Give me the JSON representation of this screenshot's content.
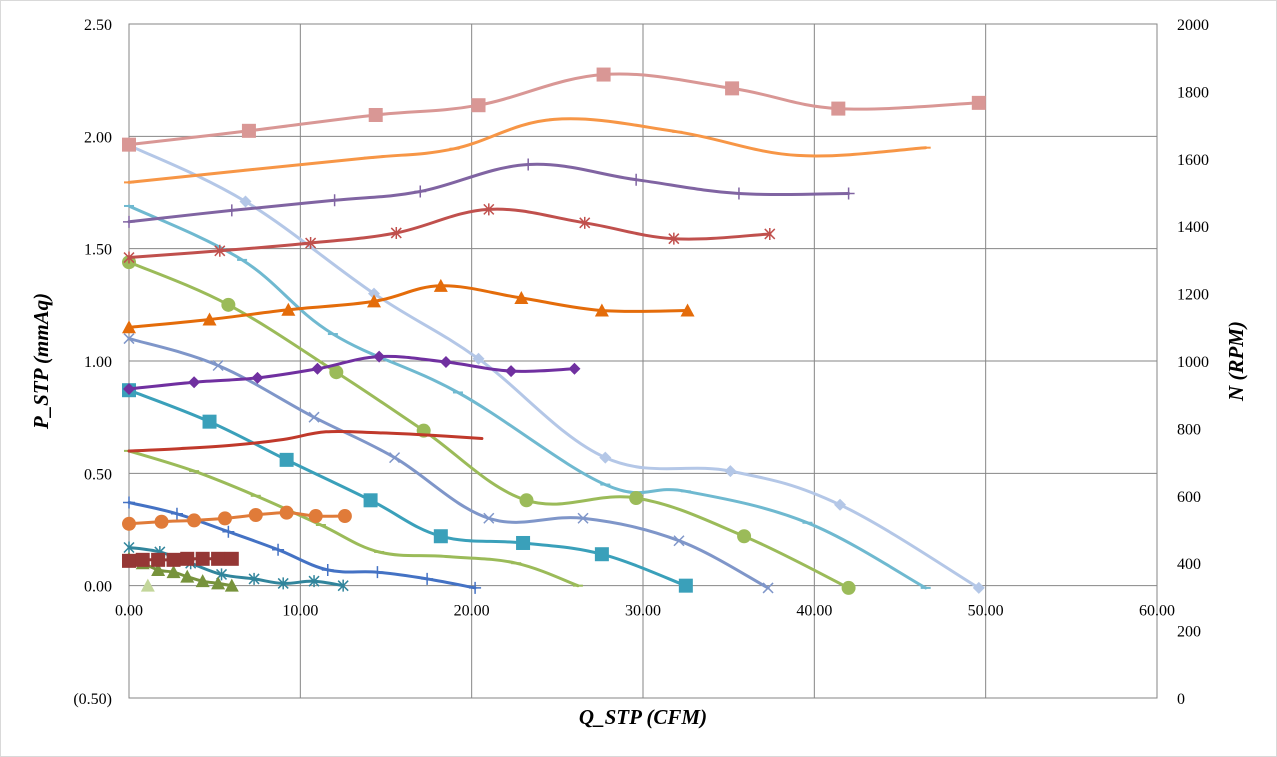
{
  "chart_data": {
    "type": "line",
    "xlabel": "Q_STP (CFM)",
    "ylabel": "P_STP (mmAq)",
    "y2label": "N (RPM)",
    "xlim": [
      0,
      60
    ],
    "ylim": [
      -0.5,
      2.5
    ],
    "y2lim": [
      0,
      2000
    ],
    "x_ticks": [
      "0.00",
      "10.00",
      "20.00",
      "30.00",
      "40.00",
      "50.00",
      "60.00"
    ],
    "y_ticks": [
      {
        "value": 2.5,
        "label": "2.50"
      },
      {
        "value": 2.0,
        "label": "2.00"
      },
      {
        "value": 1.5,
        "label": "1.50"
      },
      {
        "value": 1.0,
        "label": "1.00"
      },
      {
        "value": 0.5,
        "label": "0.50"
      },
      {
        "value": 0.0,
        "label": "0.00"
      },
      {
        "value": -0.5,
        "label": "(0.50)",
        "color": "#ff0000"
      }
    ],
    "y2_ticks": [
      "2000",
      "1800",
      "1600",
      "1400",
      "1200",
      "1000",
      "800",
      "600",
      "400",
      "200",
      "0"
    ],
    "grid": true,
    "legend": "none",
    "series": [
      {
        "axis": "y",
        "color": "#b4c7e7",
        "marker": "diamond",
        "x": [
          0,
          6.8,
          14.3,
          20.4,
          27.8,
          35.1,
          41.5,
          49.6
        ],
        "y": [
          1.96,
          1.71,
          1.3,
          1.01,
          0.57,
          0.51,
          0.36,
          -0.01
        ]
      },
      {
        "axis": "y",
        "color": "#6fb9d0",
        "marker": "dash",
        "x": [
          0,
          6.6,
          11.9,
          19.2,
          27.8,
          32.5,
          39.6,
          46.5
        ],
        "y": [
          1.69,
          1.45,
          1.12,
          0.86,
          0.45,
          0.42,
          0.28,
          -0.01
        ]
      },
      {
        "axis": "y",
        "color": "#9bbb59",
        "marker": "circle",
        "x": [
          0,
          5.8,
          12.1,
          17.2,
          23.2,
          29.6,
          35.9,
          42.0
        ],
        "y": [
          1.44,
          1.25,
          0.95,
          0.69,
          0.38,
          0.39,
          0.22,
          -0.01
        ]
      },
      {
        "axis": "y",
        "color": "#7f96c9",
        "marker": "x",
        "x": [
          0,
          5.2,
          10.8,
          15.5,
          21.0,
          26.5,
          32.1,
          37.3
        ],
        "y": [
          1.1,
          0.98,
          0.75,
          0.57,
          0.3,
          0.3,
          0.2,
          -0.01
        ]
      },
      {
        "axis": "y",
        "color": "#3aa0ba",
        "marker": "square",
        "x": [
          0,
          4.7,
          9.2,
          14.1,
          18.2,
          23.0,
          27.6,
          32.5
        ],
        "y": [
          0.87,
          0.73,
          0.56,
          0.38,
          0.22,
          0.19,
          0.14,
          0.0
        ]
      },
      {
        "axis": "y",
        "color": "#9bbb59",
        "marker": "dash",
        "x": [
          0,
          3.8,
          7.4,
          11.2,
          14.6,
          18.5,
          22.6,
          26.2
        ],
        "y": [
          0.6,
          0.51,
          0.4,
          0.27,
          0.15,
          0.13,
          0.1,
          0.0
        ]
      },
      {
        "axis": "y",
        "color": "#4472c4",
        "marker": "plus",
        "x": [
          0,
          2.8,
          5.8,
          8.7,
          11.6,
          14.5,
          17.4,
          20.2
        ],
        "y": [
          0.37,
          0.32,
          0.24,
          0.16,
          0.07,
          0.06,
          0.03,
          -0.01
        ]
      },
      {
        "axis": "y",
        "color": "#31859c",
        "marker": "asterisk",
        "x": [
          0,
          1.8,
          3.6,
          5.4,
          7.3,
          9.0,
          10.8,
          12.5
        ],
        "y": [
          0.17,
          0.15,
          0.1,
          0.05,
          0.03,
          0.01,
          0.02,
          0.0
        ]
      },
      {
        "axis": "y",
        "color": "#77933c",
        "marker": "triangle",
        "x": [
          0,
          0.8,
          1.7,
          2.6,
          3.4,
          4.3,
          5.2,
          6.0
        ],
        "y": [
          0.12,
          0.1,
          0.07,
          0.06,
          0.04,
          0.02,
          0.01,
          0.0
        ]
      },
      {
        "axis": "y",
        "color": "#c3d69b",
        "marker": "triangle",
        "x": [
          1.1
        ],
        "y": [
          0.0
        ]
      },
      {
        "axis": "y2",
        "color": "#d99795",
        "marker": "square",
        "x": [
          0,
          7.0,
          14.4,
          20.4,
          27.7,
          35.2,
          41.4,
          49.6
        ],
        "y": [
          1642,
          1683,
          1730,
          1759,
          1850,
          1809,
          1749,
          1766
        ]
      },
      {
        "axis": "y2",
        "color": "#f79646",
        "marker": "dash",
        "x": [
          0,
          7.0,
          14.0,
          19.0,
          24.8,
          32.0,
          39.0,
          46.5
        ],
        "y": [
          1530,
          1567,
          1603,
          1630,
          1717,
          1680,
          1610,
          1633
        ]
      },
      {
        "axis": "y2",
        "color": "#8064a2",
        "marker": "plus",
        "x": [
          0,
          6.0,
          12.0,
          17.0,
          23.3,
          29.6,
          35.6,
          42.0
        ],
        "y": [
          1413,
          1447,
          1477,
          1503,
          1583,
          1538,
          1497,
          1497
        ]
      },
      {
        "axis": "y2",
        "color": "#c0504d",
        "marker": "asterisk",
        "x": [
          0,
          5.3,
          10.6,
          15.6,
          21.0,
          26.6,
          31.8,
          37.4
        ],
        "y": [
          1307,
          1327,
          1350,
          1380,
          1450,
          1410,
          1363,
          1377
        ]
      },
      {
        "axis": "y2",
        "color": "#e46c0a",
        "marker": "triangle",
        "x": [
          0,
          4.7,
          9.3,
          14.3,
          18.2,
          22.9,
          27.6,
          32.6
        ],
        "y": [
          1100,
          1123,
          1152,
          1177,
          1223,
          1187,
          1150,
          1150
        ]
      },
      {
        "axis": "y2",
        "color": "#7030a0",
        "marker": "diamond",
        "x": [
          0,
          3.8,
          7.5,
          11.0,
          14.6,
          18.5,
          22.3,
          26.0
        ],
        "y": [
          917,
          937,
          950,
          977,
          1013,
          997,
          970,
          977
        ]
      },
      {
        "axis": "y2",
        "color": "#c0392b",
        "marker": "none",
        "x": [
          0,
          3.0,
          6.0,
          9.0,
          11.5,
          14.5,
          17.5,
          20.6
        ],
        "y": [
          733,
          740,
          750,
          767,
          790,
          787,
          780,
          770
        ]
      },
      {
        "axis": "y2",
        "color": "#e07b39",
        "marker": "circle",
        "x": [
          0,
          1.9,
          3.8,
          5.6,
          7.4,
          9.2,
          10.9,
          12.6
        ],
        "y": [
          517,
          523,
          527,
          533,
          543,
          550,
          540,
          540
        ]
      },
      {
        "axis": "y2",
        "color": "#953735",
        "marker": "square",
        "x": [
          0,
          0.8,
          1.7,
          2.6,
          3.4,
          4.3,
          5.2,
          6.0
        ],
        "y": [
          407,
          410,
          410,
          410,
          413,
          413,
          413,
          413
        ]
      }
    ]
  }
}
